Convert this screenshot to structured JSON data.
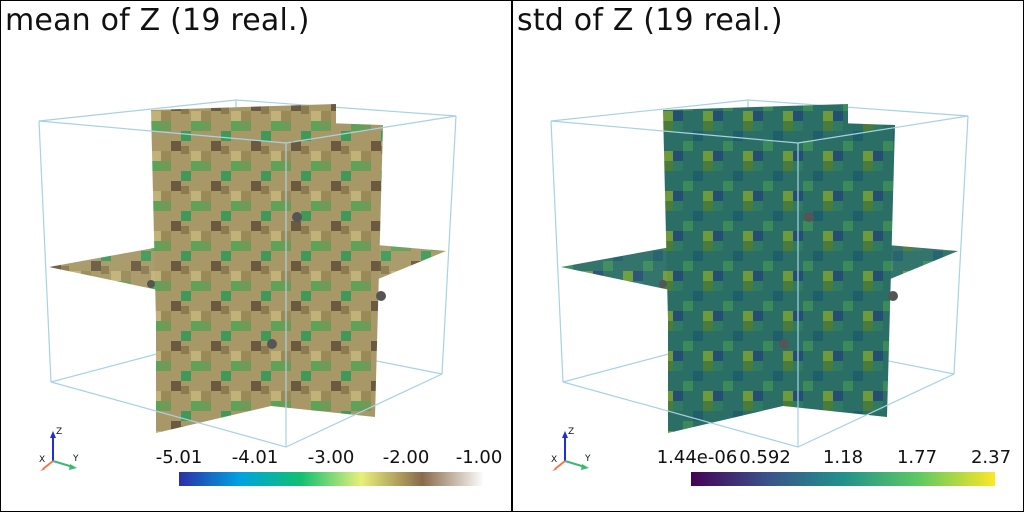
{
  "panels": [
    {
      "title": "mean of Z (19 real.)",
      "colorbar": {
        "colormap": "terrain",
        "ticks": [
          "-5.01",
          "-4.01",
          "-3.00",
          "-2.00",
          "-1.00"
        ],
        "colors": [
          "#2b2fa8",
          "#00a3e0",
          "#10c070",
          "#e8f07a",
          "#8a6a4a",
          "#fdfcfc"
        ],
        "slice_colors": [
          "#a89868",
          "#9a8a58",
          "#6f9a58",
          "#3f9a5a",
          "#6b5a40",
          "#c2b27a"
        ]
      }
    },
    {
      "title": "std of Z (19 real.)",
      "colorbar": {
        "colormap": "viridis",
        "ticks": [
          "1.44e-06",
          "0.592",
          "1.18",
          "1.77",
          "2.37"
        ],
        "colors": [
          "#440154",
          "#3b528b",
          "#21918c",
          "#5ec962",
          "#fde725"
        ],
        "slice_colors": [
          "#2a6e66",
          "#2f7a62",
          "#1f5f6a",
          "#3c8a5a",
          "#6e9a3a",
          "#4a7b3a"
        ]
      }
    }
  ],
  "axes_labels": {
    "z": "Z",
    "x": "X",
    "y": "Y"
  },
  "colors": {
    "bbox": "#a7d2e2",
    "points": "#555555"
  }
}
